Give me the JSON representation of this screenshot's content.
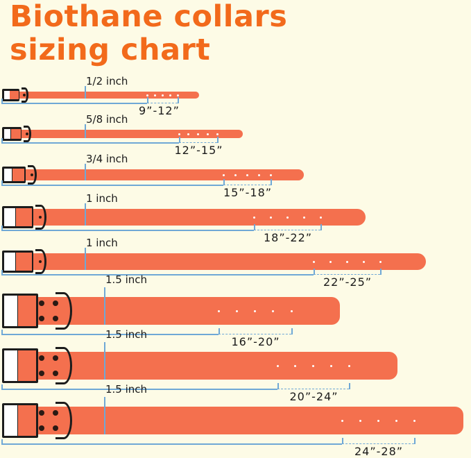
{
  "title_line1": "Biothane collars",
  "title_line2": "sizing chart",
  "colors": {
    "title": "#f26a1b",
    "strap": "#f4704e",
    "background": "#fdfbe6",
    "measure_line": "#6fa8d6",
    "hardware": "#1c1c1c"
  },
  "collars": [
    {
      "width": "1/2 inch",
      "range": "9”-12”",
      "holes": 5
    },
    {
      "width": "5/8 inch",
      "range": "12”-15”",
      "holes": 5
    },
    {
      "width": "3/4 inch",
      "range": "15”-18”",
      "holes": 5
    },
    {
      "width": "1 inch",
      "range": "18”-22”",
      "holes": 5
    },
    {
      "width": "1 inch",
      "range": "22”-25”",
      "holes": 5
    },
    {
      "width": "1.5 inch",
      "range": "16”-20”",
      "holes": 5
    },
    {
      "width": "1.5 inch",
      "range": "20”-24”",
      "holes": 5
    },
    {
      "width": "1.5 inch",
      "range": "24”-28”",
      "holes": 5
    }
  ]
}
